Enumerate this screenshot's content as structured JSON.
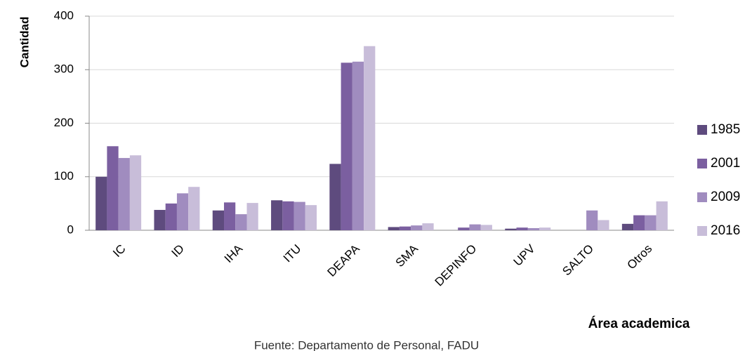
{
  "chart_data": {
    "type": "bar",
    "y_label": "Cantidad",
    "x_label": "Área academica",
    "source": "Fuente: Departamento de Personal, FADU",
    "categories": [
      "IC",
      "ID",
      "IHA",
      "ITU",
      "DEAPA",
      "SMA",
      "DEPINFO",
      "UPV",
      "SALTO",
      "Otros"
    ],
    "series": [
      {
        "name": "1985",
        "color": "#5e4b7e",
        "values": [
          100,
          38,
          37,
          56,
          124,
          6,
          0,
          3,
          0,
          12
        ]
      },
      {
        "name": "2001",
        "color": "#7b5fa0",
        "values": [
          157,
          50,
          52,
          54,
          313,
          7,
          5,
          5,
          0,
          28
        ]
      },
      {
        "name": "2009",
        "color": "#a08cbf",
        "values": [
          135,
          69,
          30,
          53,
          315,
          9,
          11,
          4,
          37,
          28
        ]
      },
      {
        "name": "2016",
        "color": "#c8bdd9",
        "values": [
          140,
          81,
          51,
          47,
          344,
          13,
          10,
          5,
          19,
          54
        ]
      }
    ],
    "ylim": [
      0,
      400
    ],
    "yticks": [
      0,
      100,
      200,
      300,
      400
    ],
    "grid": true,
    "legend": "right"
  }
}
